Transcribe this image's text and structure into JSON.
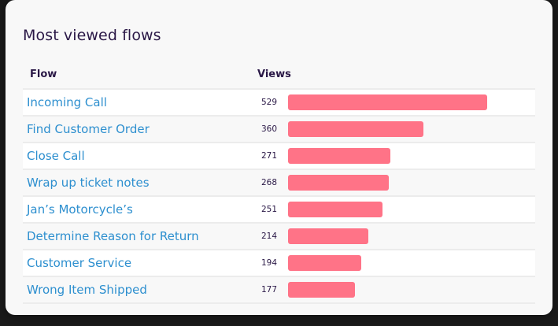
{
  "card": {
    "title": "Most viewed flows",
    "columns": {
      "flow": "Flow",
      "views": "Views"
    }
  },
  "colors": {
    "bar": "#ff7387",
    "link": "#2d8fcf",
    "heading": "#2a1846"
  },
  "rows": [
    {
      "flow": "Incoming Call",
      "views": "529"
    },
    {
      "flow": "Find Customer Order",
      "views": "360"
    },
    {
      "flow": "Close Call",
      "views": "271"
    },
    {
      "flow": "Wrap up ticket notes",
      "views": "268"
    },
    {
      "flow": "Jan’s Motorcycle’s",
      "views": "251"
    },
    {
      "flow": "Determine Reason for Return",
      "views": "214"
    },
    {
      "flow": "Customer Service",
      "views": "194"
    },
    {
      "flow": "Wrong Item Shipped",
      "views": "177"
    }
  ],
  "chart_data": {
    "type": "bar",
    "orientation": "horizontal",
    "title": "Most viewed flows",
    "xlabel": "Views",
    "ylabel": "Flow",
    "categories": [
      "Incoming Call",
      "Find Customer Order",
      "Close Call",
      "Wrap up ticket notes",
      "Jan’s Motorcycle’s",
      "Determine Reason for Return",
      "Customer Service",
      "Wrong Item Shipped"
    ],
    "values": [
      529,
      360,
      271,
      268,
      251,
      214,
      194,
      177
    ],
    "bar_color": "#ff7387",
    "grid": false,
    "legend": null
  }
}
